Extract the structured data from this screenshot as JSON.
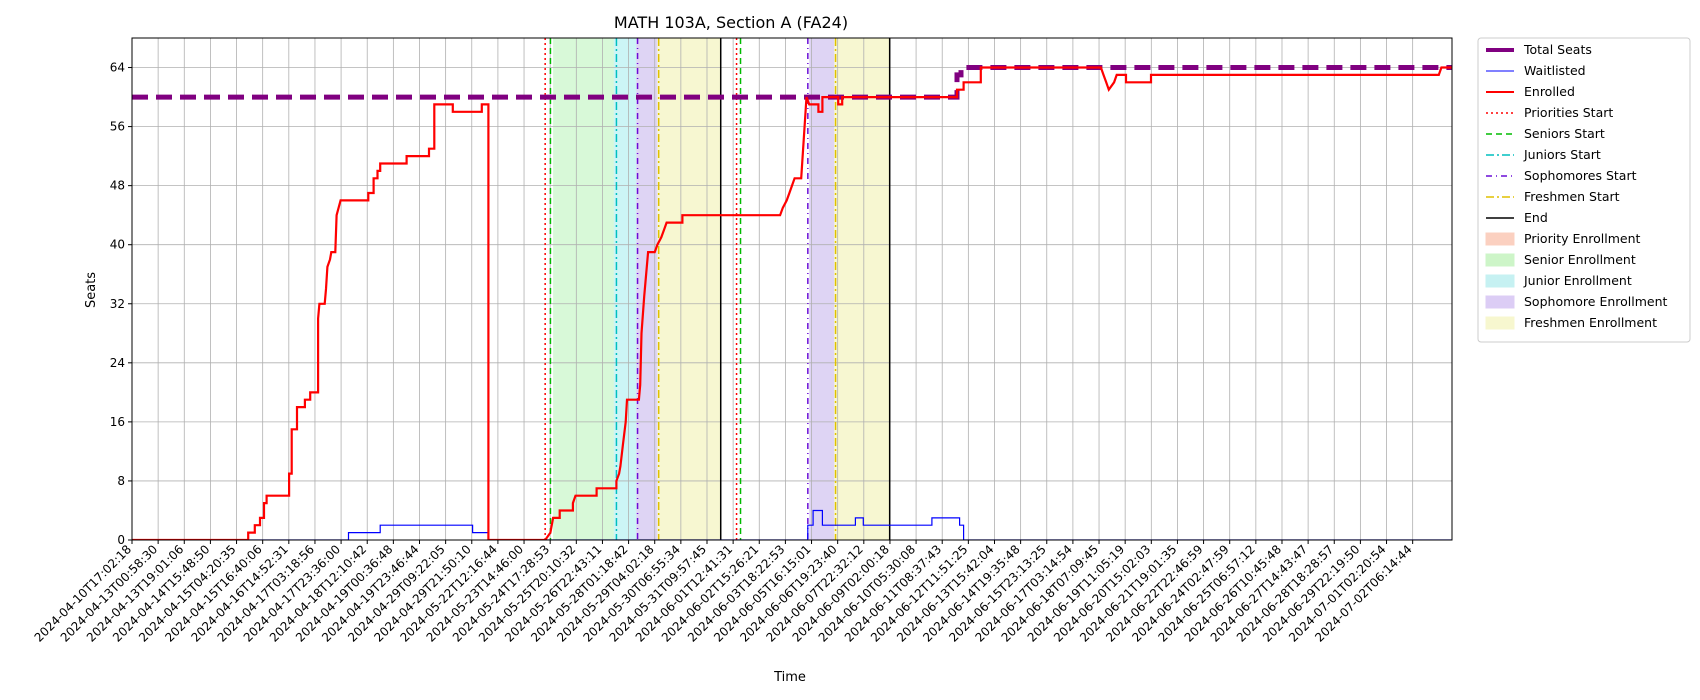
{
  "chart_data": {
    "type": "line",
    "title": "MATH 103A, Section A (FA24)",
    "xlabel": "Time",
    "ylabel": "Seats",
    "ylim": [
      0,
      68
    ],
    "yticks": [
      0,
      8,
      16,
      24,
      32,
      40,
      48,
      56,
      64
    ],
    "x_axis_kind": "ordinal-timestamps",
    "x_range": [
      0,
      100
    ],
    "x_ticks": [
      {
        "x": 0.0,
        "label": "2024-04-10T17:02:18"
      },
      {
        "x": 1.98,
        "label": "2024-04-13T00:58:30"
      },
      {
        "x": 3.96,
        "label": "2024-04-13T19:01:06"
      },
      {
        "x": 5.94,
        "label": "2024-04-14T15:48:50"
      },
      {
        "x": 7.92,
        "label": "2024-04-15T04:20:35"
      },
      {
        "x": 9.9,
        "label": "2024-04-15T16:40:06"
      },
      {
        "x": 11.88,
        "label": "2024-04-16T14:52:31"
      },
      {
        "x": 13.86,
        "label": "2024-04-17T03:18:56"
      },
      {
        "x": 15.84,
        "label": "2024-04-17T23:36:00"
      },
      {
        "x": 17.82,
        "label": "2024-04-18T12:10:42"
      },
      {
        "x": 19.8,
        "label": "2024-04-19T00:36:48"
      },
      {
        "x": 21.78,
        "label": "2024-04-19T23:46:44"
      },
      {
        "x": 23.76,
        "label": "2024-04-29T09:22:05"
      },
      {
        "x": 25.74,
        "label": "2024-04-29T21:50:10"
      },
      {
        "x": 27.72,
        "label": "2024-05-22T12:16:44"
      },
      {
        "x": 29.7,
        "label": "2024-05-23T14:46:00"
      },
      {
        "x": 31.68,
        "label": "2024-05-24T17:28:53"
      },
      {
        "x": 33.66,
        "label": "2024-05-25T20:10:32"
      },
      {
        "x": 35.64,
        "label": "2024-05-26T22:43:11"
      },
      {
        "x": 37.62,
        "label": "2024-05-28T01:18:42"
      },
      {
        "x": 39.6,
        "label": "2024-05-29T04:02:18"
      },
      {
        "x": 41.58,
        "label": "2024-05-30T06:55:34"
      },
      {
        "x": 43.56,
        "label": "2024-05-31T09:57:45"
      },
      {
        "x": 45.54,
        "label": "2024-06-01T12:41:31"
      },
      {
        "x": 47.52,
        "label": "2024-06-02T15:26:21"
      },
      {
        "x": 49.5,
        "label": "2024-06-03T18:22:53"
      },
      {
        "x": 51.48,
        "label": "2024-06-05T16:15:01"
      },
      {
        "x": 53.46,
        "label": "2024-06-06T19:23:40"
      },
      {
        "x": 55.44,
        "label": "2024-06-07T22:32:12"
      },
      {
        "x": 57.42,
        "label": "2024-06-09T02:00:18"
      },
      {
        "x": 59.4,
        "label": "2024-06-10T05:30:08"
      },
      {
        "x": 61.38,
        "label": "2024-06-11T08:37:43"
      },
      {
        "x": 63.36,
        "label": "2024-06-12T11:51:25"
      },
      {
        "x": 65.34,
        "label": "2024-06-13T15:42:04"
      },
      {
        "x": 67.32,
        "label": "2024-06-14T19:35:48"
      },
      {
        "x": 69.3,
        "label": "2024-06-15T23:13:25"
      },
      {
        "x": 71.28,
        "label": "2024-06-17T03:14:54"
      },
      {
        "x": 73.26,
        "label": "2024-06-18T07:09:45"
      },
      {
        "x": 75.24,
        "label": "2024-06-19T11:05:19"
      },
      {
        "x": 77.22,
        "label": "2024-06-20T15:02:03"
      },
      {
        "x": 79.2,
        "label": "2024-06-21T19:01:35"
      },
      {
        "x": 81.18,
        "label": "2024-06-22T22:46:59"
      },
      {
        "x": 83.16,
        "label": "2024-06-24T02:47:59"
      },
      {
        "x": 85.14,
        "label": "2024-06-25T06:57:12"
      },
      {
        "x": 87.12,
        "label": "2024-06-26T10:45:48"
      },
      {
        "x": 89.1,
        "label": "2024-06-27T14:43:47"
      },
      {
        "x": 91.08,
        "label": "2024-06-28T18:28:57"
      },
      {
        "x": 93.06,
        "label": "2024-06-29T22:19:50"
      },
      {
        "x": 95.04,
        "label": "2024-07-01T02:20:54"
      },
      {
        "x": 97.02,
        "label": "2024-07-02T06:14:44"
      }
    ],
    "grid": true,
    "legend_position": "outside-right",
    "shaded_regions": [
      {
        "name": "Senior Enrollment",
        "x0": 31.9,
        "x1": 36.5,
        "color": "#90ee90",
        "opacity": 0.35
      },
      {
        "name": "Junior Enrollment",
        "x0": 36.5,
        "x1": 38.2,
        "color": "#00ced1",
        "opacity": 0.2
      },
      {
        "name": "Sophomore Enrollment",
        "x0": 38.2,
        "x1": 39.8,
        "color": "#9370db",
        "opacity": 0.3
      },
      {
        "name": "Freshmen Enrollment",
        "x0": 39.8,
        "x1": 44.6,
        "color": "#eeee99",
        "opacity": 0.45
      },
      {
        "name": "Sophomore Enrollment",
        "x0": 51.3,
        "x1": 53.2,
        "color": "#9370db",
        "opacity": 0.3
      },
      {
        "name": "Freshmen Enrollment",
        "x0": 53.2,
        "x1": 57.4,
        "color": "#eeee99",
        "opacity": 0.45
      }
    ],
    "markers": [
      {
        "name": "Priorities Start",
        "x": 31.3,
        "color": "#ff0000",
        "dash": "2,3"
      },
      {
        "name": "Seniors Start",
        "x": 31.7,
        "color": "#00bb00",
        "dash": "6,4"
      },
      {
        "name": "Juniors Start",
        "x": 36.7,
        "color": "#00bfbf",
        "dash": "8,3,2,3"
      },
      {
        "name": "Sophomores Start",
        "x": 38.3,
        "color": "#6a0dd6",
        "dash": "6,4,1,4"
      },
      {
        "name": "Freshmen Start",
        "x": 39.9,
        "color": "#e0c000",
        "dash": "8,3,2,3"
      },
      {
        "name": "End",
        "x": 44.6,
        "color": "#000000",
        "dash": ""
      },
      {
        "name": "Priorities Start",
        "x": 45.8,
        "color": "#ff0000",
        "dash": "2,3"
      },
      {
        "name": "Seniors Start",
        "x": 46.1,
        "color": "#00bb00",
        "dash": "6,4"
      },
      {
        "name": "Sophomores Start",
        "x": 51.2,
        "color": "#6a0dd6",
        "dash": "6,4,1,4"
      },
      {
        "name": "Freshmen Start",
        "x": 53.3,
        "color": "#e0c000",
        "dash": "8,3,2,3"
      },
      {
        "name": "End",
        "x": 57.4,
        "color": "#000000",
        "dash": ""
      }
    ],
    "series": [
      {
        "name": "Total Seats",
        "color": "#800080",
        "style": "dashed-thick",
        "points": [
          [
            0,
            60
          ],
          [
            62.5,
            60
          ],
          [
            62.5,
            63
          ],
          [
            62.8,
            63
          ],
          [
            62.8,
            64
          ],
          [
            100,
            64
          ]
        ]
      },
      {
        "name": "Waitlisted",
        "color": "#0000ff",
        "style": "solid-thin",
        "points": [
          [
            0,
            0
          ],
          [
            16.4,
            0
          ],
          [
            16.4,
            1
          ],
          [
            18.8,
            1
          ],
          [
            18.8,
            2
          ],
          [
            25.8,
            2
          ],
          [
            25.8,
            1
          ],
          [
            27.0,
            1
          ],
          [
            27.0,
            0
          ],
          [
            51.2,
            0
          ],
          [
            51.2,
            2
          ],
          [
            51.6,
            2
          ],
          [
            51.6,
            4
          ],
          [
            52.3,
            4
          ],
          [
            52.3,
            2
          ],
          [
            54.8,
            2
          ],
          [
            54.8,
            3
          ],
          [
            55.4,
            3
          ],
          [
            55.4,
            2
          ],
          [
            60.6,
            2
          ],
          [
            60.6,
            3
          ],
          [
            62.7,
            3
          ],
          [
            62.7,
            2
          ],
          [
            63.0,
            2
          ],
          [
            63.0,
            0
          ],
          [
            100,
            0
          ]
        ]
      },
      {
        "name": "Enrolled",
        "color": "#ff0000",
        "style": "solid-thick",
        "points": [
          [
            0,
            0
          ],
          [
            8.8,
            0
          ],
          [
            8.8,
            1
          ],
          [
            9.3,
            1
          ],
          [
            9.3,
            2
          ],
          [
            9.7,
            2
          ],
          [
            9.7,
            3
          ],
          [
            10.0,
            3
          ],
          [
            10.0,
            5
          ],
          [
            10.2,
            5
          ],
          [
            10.2,
            6
          ],
          [
            11.9,
            6
          ],
          [
            11.9,
            9
          ],
          [
            12.1,
            9
          ],
          [
            12.1,
            15
          ],
          [
            12.5,
            15
          ],
          [
            12.5,
            18
          ],
          [
            13.1,
            18
          ],
          [
            13.1,
            19
          ],
          [
            13.5,
            19
          ],
          [
            13.5,
            20
          ],
          [
            14.1,
            20
          ],
          [
            14.1,
            30
          ],
          [
            14.2,
            32
          ],
          [
            14.6,
            32
          ],
          [
            14.7,
            34
          ],
          [
            14.8,
            37
          ],
          [
            15.0,
            38
          ],
          [
            15.1,
            39
          ],
          [
            15.4,
            39
          ],
          [
            15.5,
            44
          ],
          [
            15.8,
            46
          ],
          [
            17.9,
            46
          ],
          [
            17.9,
            47
          ],
          [
            18.3,
            47
          ],
          [
            18.3,
            49
          ],
          [
            18.6,
            49
          ],
          [
            18.6,
            50
          ],
          [
            18.8,
            50
          ],
          [
            18.8,
            51
          ],
          [
            20.8,
            51
          ],
          [
            20.8,
            52
          ],
          [
            22.5,
            52
          ],
          [
            22.5,
            53
          ],
          [
            22.9,
            53
          ],
          [
            22.9,
            59
          ],
          [
            24.3,
            59
          ],
          [
            24.3,
            58
          ],
          [
            26.5,
            58
          ],
          [
            26.5,
            59
          ],
          [
            27.0,
            59
          ],
          [
            27.0,
            0
          ],
          [
            31.3,
            0
          ],
          [
            31.7,
            1
          ],
          [
            31.9,
            3
          ],
          [
            32.4,
            3
          ],
          [
            32.4,
            4
          ],
          [
            33.4,
            4
          ],
          [
            33.4,
            5
          ],
          [
            33.6,
            6
          ],
          [
            35.2,
            6
          ],
          [
            35.2,
            7
          ],
          [
            36.7,
            7
          ],
          [
            36.7,
            8
          ],
          [
            36.9,
            9
          ],
          [
            37.0,
            10
          ],
          [
            37.2,
            13
          ],
          [
            37.4,
            16
          ],
          [
            37.5,
            19
          ],
          [
            38.4,
            19
          ],
          [
            38.5,
            21
          ],
          [
            38.6,
            28
          ],
          [
            38.8,
            33
          ],
          [
            38.9,
            35
          ],
          [
            39.1,
            39
          ],
          [
            39.6,
            39
          ],
          [
            39.8,
            40
          ],
          [
            40.1,
            41
          ],
          [
            40.3,
            42
          ],
          [
            40.5,
            43
          ],
          [
            41.7,
            43
          ],
          [
            41.7,
            44
          ],
          [
            45.8,
            44
          ],
          [
            49.1,
            44
          ],
          [
            49.3,
            45
          ],
          [
            49.6,
            46
          ],
          [
            49.8,
            47
          ],
          [
            50.0,
            48
          ],
          [
            50.2,
            49
          ],
          [
            50.7,
            49
          ],
          [
            51.1,
            60
          ],
          [
            51.3,
            59
          ],
          [
            52.0,
            59
          ],
          [
            52.0,
            58
          ],
          [
            52.3,
            58
          ],
          [
            52.3,
            60
          ],
          [
            53.5,
            60
          ],
          [
            53.5,
            59
          ],
          [
            53.8,
            59
          ],
          [
            53.8,
            60
          ],
          [
            56.5,
            60
          ],
          [
            57.4,
            60
          ],
          [
            62.5,
            60
          ],
          [
            62.5,
            61
          ],
          [
            63.0,
            61
          ],
          [
            63.0,
            62
          ],
          [
            64.3,
            62
          ],
          [
            64.3,
            64
          ],
          [
            73.4,
            64
          ],
          [
            73.6,
            63
          ],
          [
            73.8,
            62
          ],
          [
            74.0,
            61
          ],
          [
            74.4,
            62
          ],
          [
            74.6,
            63
          ],
          [
            75.3,
            63
          ],
          [
            75.3,
            62
          ],
          [
            77.2,
            62
          ],
          [
            77.2,
            63
          ],
          [
            79.4,
            63
          ],
          [
            99.0,
            63
          ],
          [
            99.2,
            64
          ],
          [
            100,
            64
          ]
        ]
      }
    ],
    "legend": [
      {
        "label": "Total Seats",
        "kind": "line",
        "color": "#800080",
        "dash": "",
        "width": 4
      },
      {
        "label": "Waitlisted",
        "kind": "line",
        "color": "#0000ff",
        "dash": "",
        "width": 1
      },
      {
        "label": "Enrolled",
        "kind": "line",
        "color": "#ff0000",
        "dash": "",
        "width": 2
      },
      {
        "label": "Priorities Start",
        "kind": "line",
        "color": "#ff0000",
        "dash": "2,3",
        "width": 1.5
      },
      {
        "label": "Seniors Start",
        "kind": "line",
        "color": "#00bb00",
        "dash": "6,4",
        "width": 1.5
      },
      {
        "label": "Juniors Start",
        "kind": "line",
        "color": "#00bfbf",
        "dash": "8,3,2,3",
        "width": 1.5
      },
      {
        "label": "Sophomores Start",
        "kind": "line",
        "color": "#6a0dd6",
        "dash": "6,4,1,4",
        "width": 1.5
      },
      {
        "label": "Freshmen Start",
        "kind": "line",
        "color": "#e0c000",
        "dash": "8,3,2,3",
        "width": 1.5
      },
      {
        "label": "End",
        "kind": "line",
        "color": "#000000",
        "dash": "",
        "width": 1.5
      },
      {
        "label": "Priority Enrollment",
        "kind": "patch",
        "color": "#fbd0c0"
      },
      {
        "label": "Senior Enrollment",
        "kind": "patch",
        "color": "#cdf5c8"
      },
      {
        "label": "Junior Enrollment",
        "kind": "patch",
        "color": "#c6f1f2"
      },
      {
        "label": "Sophomore Enrollment",
        "kind": "patch",
        "color": "#dccdf5"
      },
      {
        "label": "Freshmen Enrollment",
        "kind": "patch",
        "color": "#f7f7cf"
      }
    ]
  }
}
